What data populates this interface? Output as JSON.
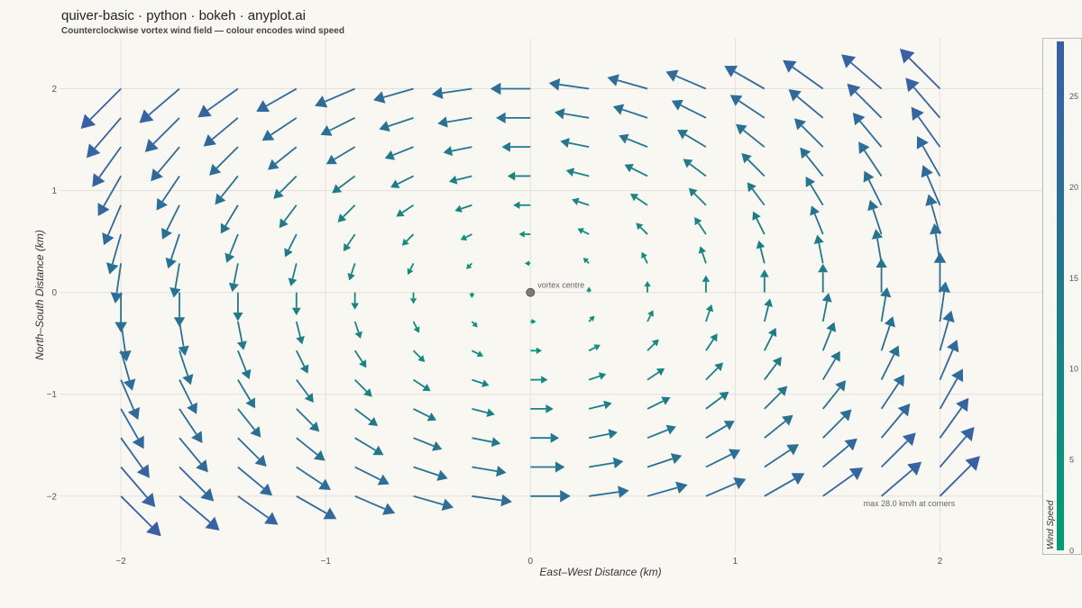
{
  "header": {
    "title": "quiver-basic · python · bokeh · anyplot.ai",
    "subtitle": "Counterclockwise vortex wind field — colour encodes wind speed"
  },
  "chart_data": {
    "type": "quiver",
    "title": "quiver-basic · python · bokeh · anyplot.ai",
    "subtitle": "Counterclockwise vortex wind field — colour encodes wind speed",
    "xlabel": "East–West Distance (km)",
    "ylabel": "North–South Distance (km)",
    "xlim": [
      -2.3,
      2.5
    ],
    "ylim": [
      -2.55,
      2.5
    ],
    "x_ticks": [
      -2,
      -1,
      0,
      1,
      2
    ],
    "x_tick_labels": [
      "−2",
      "−1",
      "0",
      "1",
      "2"
    ],
    "y_ticks": [
      -2,
      -1,
      0,
      1,
      2
    ],
    "y_tick_labels": [
      "−2",
      "−1",
      "0",
      "1",
      "2"
    ],
    "grid": true,
    "field": {
      "description_type": "counterclockwise-vortex",
      "u": "-y",
      "v": "x",
      "x_range": [
        -2,
        2
      ],
      "y_range": [
        -2,
        2
      ],
      "n": 15,
      "speed_scale_kmh_per_km": 9.9
    },
    "annotations": [
      {
        "x": 0,
        "y": 0,
        "text": "vortex centre",
        "marker": "circle"
      },
      {
        "x": 1.85,
        "y": -2.1,
        "text": "max 28.0 km/h at corners"
      }
    ],
    "colorbar": {
      "title": "Wind Speed",
      "range": [
        0,
        28
      ],
      "ticks": [
        0,
        5,
        10,
        15,
        20,
        25
      ],
      "colors": [
        "#009e73",
        "#1f7a8c",
        "#3a5fa8"
      ]
    },
    "colors": {
      "background": "#f9f7f1",
      "grid": "#e4e1da",
      "low": "#009e73",
      "high": "#3a5fa8",
      "centre_marker": "#555555"
    }
  }
}
